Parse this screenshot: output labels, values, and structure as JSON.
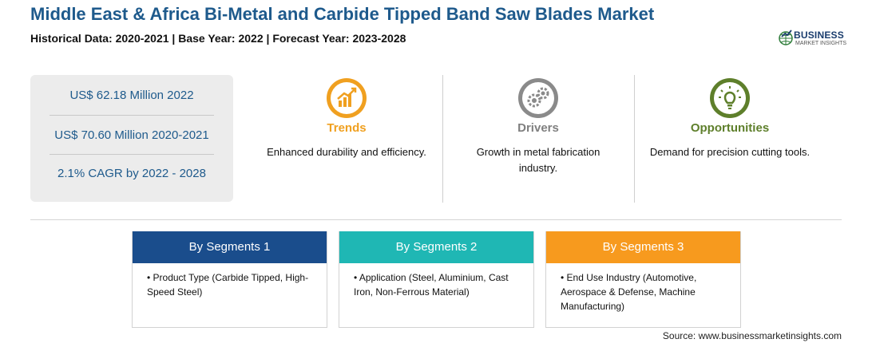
{
  "header": {
    "title": "Middle East & Africa Bi-Metal and Carbide Tipped Band Saw Blades Market",
    "subtitle": "Historical Data: 2020-2021 | Base Year: 2022 | Forecast Year: 2023-2028"
  },
  "logo": {
    "main": "BUSINESS",
    "sub": "MARKET INSIGHTS"
  },
  "stats": [
    "US$ 62.18 Million 2022",
    "US$ 70.60 Million 2020-2021",
    "2.1% CAGR by 2022 - 2028"
  ],
  "features": [
    {
      "label": "Trends",
      "desc": "Enhanced durability and efficiency.",
      "color": "#f0a020",
      "icon": "trend-chart-icon"
    },
    {
      "label": "Drivers",
      "desc": "Growth in metal fabrication industry.",
      "color": "#8a8a8a",
      "icon": "gears-icon"
    },
    {
      "label": "Opportunities",
      "desc": "Demand for precision cutting tools.",
      "color": "#5e7f2b",
      "icon": "lightbulb-icon"
    }
  ],
  "segments": [
    {
      "title": "By Segments 1",
      "text": "• Product Type (Carbide Tipped, High-Speed Steel)",
      "color": "#1a4d8c"
    },
    {
      "title": "By Segments 2",
      "text": "• Application (Steel, Aluminium, Cast Iron, Non-Ferrous Material)",
      "color": "#1fb7b4"
    },
    {
      "title": "By Segments 3",
      "text": "• End Use Industry (Automotive, Aerospace & Defense, Machine Manufacturing)",
      "color": "#f79a1e"
    }
  ],
  "source": "Source: www.businessmarketinsights.com"
}
